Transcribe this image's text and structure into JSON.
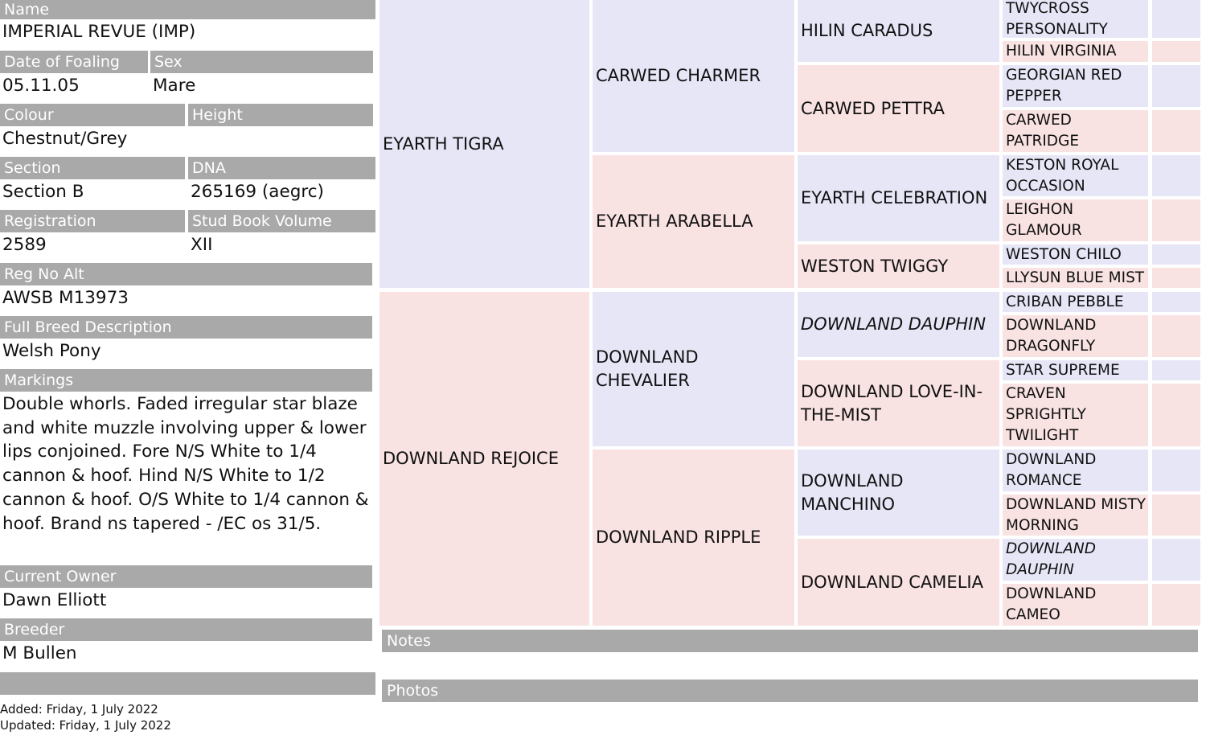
{
  "fields": [
    {
      "label": "Name",
      "value": "IMPERIAL REVUE (IMP)"
    },
    {
      "label": "Date of Foaling",
      "value": "05.11.05"
    },
    {
      "label": "Sex",
      "value": "Mare"
    },
    {
      "label": "Colour",
      "value": "Chestnut/Grey"
    },
    {
      "label": "Height"
    },
    {
      "label": "Section",
      "value": "Section B"
    },
    {
      "label": "DNA",
      "value": "265169 (aegrc)"
    },
    {
      "label": "Registration",
      "value": "2589"
    },
    {
      "label": "Stud Book Volume",
      "value": "XII"
    },
    {
      "label": "Reg No Alt",
      "value": "AWSB M13973"
    },
    {
      "label": "Full Breed Description",
      "value": "Welsh Pony"
    },
    {
      "label": "Markings",
      "value": "Double whorls. Faded irregular star blaze and white muzzle involving upper & lower lips conjoined. Fore N/S White to 1/4 cannon & hoof. Hind N/S White to 1/2 cannon & hoof. O/S White to 1/4 cannon & hoof. Brand ns tapered - /EC os 31/5."
    },
    {
      "label": "Current Owner",
      "value": "Dawn Elliott"
    },
    {
      "label": "Breeder",
      "value": "M Bullen"
    }
  ],
  "added": "Added: Friday, 1 July 2022",
  "updated": "Updated: Friday, 1 July 2022",
  "notes": "Notes",
  "photos": "Photos",
  "pedigree": {
    "generations": [
      [
        {
          "name": "EYARTH TIGRA"
        },
        {
          "name": "DOWNLAND REJOICE"
        }
      ],
      [
        {
          "name": "CARWED CHARMER"
        },
        {
          "name": "EYARTH ARABELLA"
        },
        {
          "name": "DOWNLAND CHEVALIER"
        },
        {
          "name": "DOWNLAND RIPPLE"
        }
      ],
      [
        {
          "name": "HILIN CARADUS"
        },
        {
          "name": "CARWED PETTRA"
        },
        {
          "name": "EYARTH CELEBRATION"
        },
        {
          "name": "WESTON TWIGGY"
        },
        {
          "name": "DOWNLAND DAUPHIN",
          "italic": true
        },
        {
          "name": "DOWNLAND LOVE-IN-THE-MIST"
        },
        {
          "name": "DOWNLAND MANCHINO"
        },
        {
          "name": "DOWNLAND CAMELIA"
        }
      ],
      [
        {
          "name": "TWYCROSS PERSONALITY"
        },
        {
          "name": "HILIN VIRGINIA"
        },
        {
          "name": "GEORGIAN RED PEPPER"
        },
        {
          "name": "CARWED PATRIDGE"
        },
        {
          "name": "KESTON ROYAL OCCASION"
        },
        {
          "name": "LEIGHON GLAMOUR"
        },
        {
          "name": "WESTON CHILO"
        },
        {
          "name": "LLYSUN BLUE MIST"
        },
        {
          "name": "CRIBAN PEBBLE"
        },
        {
          "name": "DOWNLAND DRAGONFLY"
        },
        {
          "name": "STAR SUPREME"
        },
        {
          "name": "CRAVEN SPRIGHTLY TWILIGHT"
        },
        {
          "name": "DOWNLAND ROMANCE"
        },
        {
          "name": "DOWNLAND MISTY MORNING"
        },
        {
          "name": "DOWNLAND DAUPHIN",
          "italic": true
        },
        {
          "name": "DOWNLAND CAMEO"
        }
      ]
    ]
  }
}
